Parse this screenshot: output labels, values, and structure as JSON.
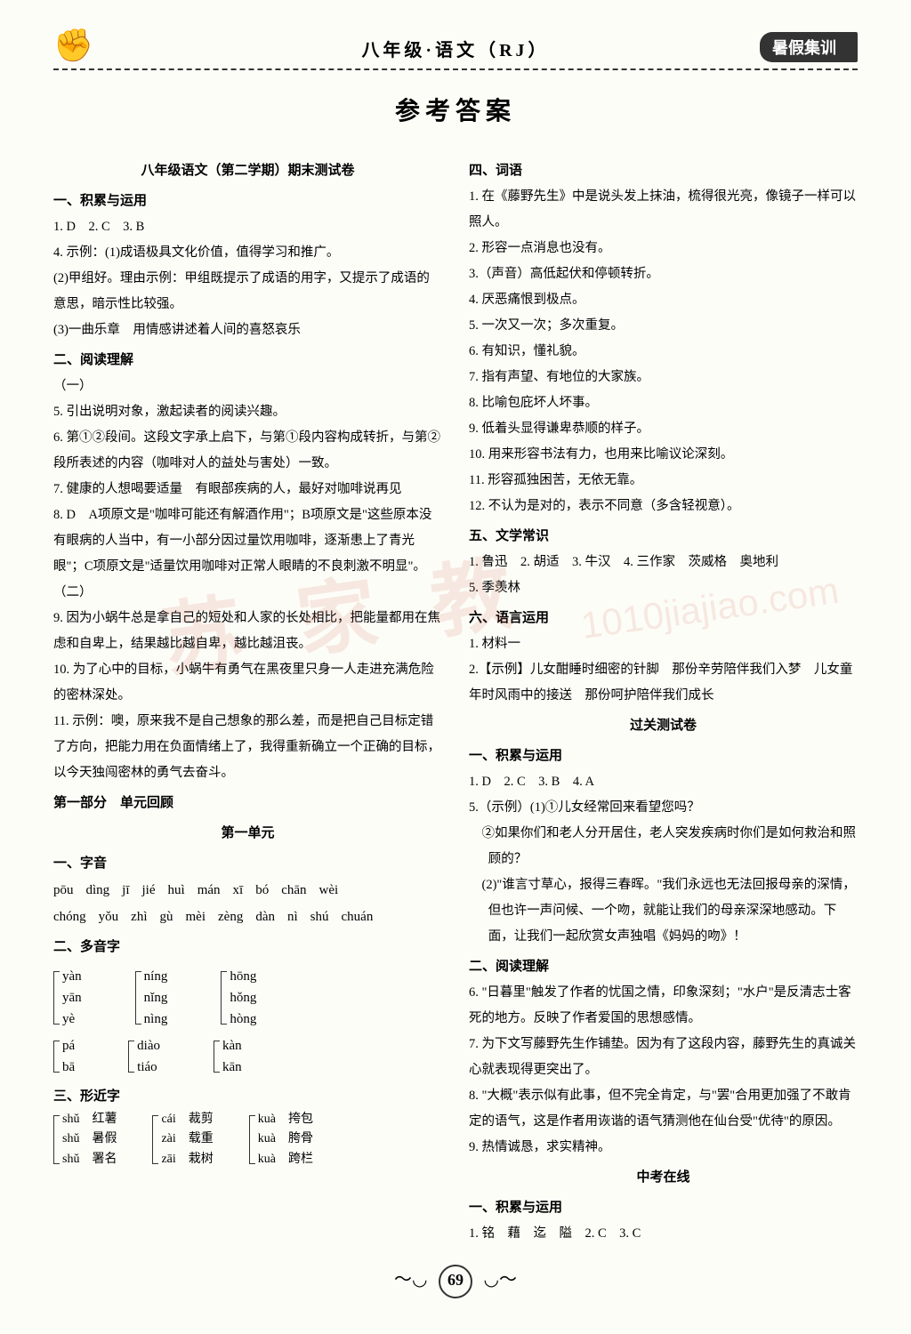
{
  "header": {
    "title": "八年级·语文（RJ）",
    "badge": "暑假集训"
  },
  "main_title": "参考答案",
  "watermark": "苏 家 教",
  "watermark2": "1010jiajiao.com",
  "page_number": "69",
  "left": {
    "test_title": "八年级语文（第二学期）期末测试卷",
    "s1_title": "一、积累与运用",
    "s1_items": [
      "1. D　2. C　3. B",
      "4. 示例：(1)成语极具文化价值，值得学习和推广。",
      "(2)甲组好。理由示例：甲组既提示了成语的用字，又提示了成语的意思，暗示性比较强。",
      "(3)一曲乐章　用情感讲述着人间的喜怒哀乐"
    ],
    "s2_title": "二、阅读理解",
    "s2a": "（一）",
    "s2a_items": [
      "5. 引出说明对象，激起读者的阅读兴趣。",
      "6. 第①②段间。这段文字承上启下，与第①段内容构成转折，与第②段所表述的内容（咖啡对人的益处与害处）一致。",
      "7. 健康的人想喝要适量　有眼部疾病的人，最好对咖啡说再见",
      "8. D　A项原文是\"咖啡可能还有解酒作用\"；B项原文是\"这些原本没有眼病的人当中，有一小部分因过量饮用咖啡，逐渐患上了青光眼\"；C项原文是\"适量饮用咖啡对正常人眼睛的不良刺激不明显\"。"
    ],
    "s2b": "（二）",
    "s2b_items": [
      "9. 因为小蜗牛总是拿自己的短处和人家的长处相比，把能量都用在焦虑和自卑上，结果越比越自卑，越比越沮丧。",
      "10. 为了心中的目标，小蜗牛有勇气在黑夜里只身一人走进充满危险的密林深处。",
      "11. 示例：噢，原来我不是自己想象的那么差，而是把自己目标定错了方向，把能力用在负面情绪上了，我得重新确立一个正确的目标，以今天独闯密林的勇气去奋斗。"
    ],
    "part1_title": "第一部分　单元回顾",
    "unit1_title": "第一单元",
    "u1_s1": "一、字音",
    "pinyin1": [
      "pōu",
      "dìng",
      "jī",
      "jié",
      "huì",
      "mán",
      "xī",
      "bó",
      "chān",
      "wèi"
    ],
    "pinyin2": [
      "chóng",
      "yǒu",
      "zhì",
      "gù",
      "mèi",
      "zèng",
      "dàn",
      "nì",
      "shú",
      "chuán"
    ],
    "u1_s2": "二、多音字",
    "poly": [
      {
        "group": [
          "yàn",
          "yān",
          "yè"
        ]
      },
      {
        "group": [
          "níng",
          "nǐng",
          "nìng"
        ]
      },
      {
        "group": [
          "hōng",
          "hǒng",
          "hòng"
        ]
      },
      {
        "group": [
          "pá",
          "bā"
        ]
      },
      {
        "group": [
          "diào",
          "tiáo"
        ]
      },
      {
        "group": [
          "kàn",
          "kān"
        ]
      }
    ],
    "u1_s3": "三、形近字",
    "near": [
      {
        "group": [
          "shǔ　红薯",
          "shǔ　暑假",
          "shǔ　署名"
        ]
      },
      {
        "group": [
          "cái　裁剪",
          "zài　载重",
          "zāi　栽树"
        ]
      },
      {
        "group": [
          "kuà　挎包",
          "kuà　胯骨",
          "kuà　跨栏"
        ]
      }
    ]
  },
  "right": {
    "s4_title": "四、词语",
    "s4_items": [
      "1. 在《藤野先生》中是说头发上抹油，梳得很光亮，像镜子一样可以照人。",
      "2. 形容一点消息也没有。",
      "3.（声音）高低起伏和停顿转折。",
      "4. 厌恶痛恨到极点。",
      "5. 一次又一次；多次重复。",
      "6. 有知识，懂礼貌。",
      "7. 指有声望、有地位的大家族。",
      "8. 比喻包庇坏人坏事。",
      "9. 低着头显得谦卑恭顺的样子。",
      "10. 用来形容书法有力，也用来比喻议论深刻。",
      "11. 形容孤独困苦，无依无靠。",
      "12. 不认为是对的，表示不同意（多含轻视意）。"
    ],
    "s5_title": "五、文学常识",
    "s5_items": [
      "1. 鲁迅　2. 胡适　3. 牛汉　4. 三作家　茨威格　奥地利",
      "5. 季羡林"
    ],
    "s6_title": "六、语言运用",
    "s6_items": [
      "1. 材料一",
      "2.【示例】儿女酣睡时细密的针脚　那份辛劳陪伴我们入梦　儿女童年时风雨中的接送　那份呵护陪伴我们成长"
    ],
    "pass_title": "过关测试卷",
    "p1_title": "一、积累与运用",
    "p1_items": [
      "1. D　2. C　3. B　4. A",
      "5.（示例）(1)①儿女经常回来看望您吗？",
      "②如果你们和老人分开居住，老人突发疾病时你们是如何救治和照顾的？",
      "(2)\"谁言寸草心，报得三春晖。\"我们永远也无法回报母亲的深情，但也许一声问候、一个吻，就能让我们的母亲深深地感动。下面，让我们一起欣赏女声独唱《妈妈的吻》！"
    ],
    "p2_title": "二、阅读理解",
    "p2_items": [
      "6. \"日暮里\"触发了作者的忧国之情，印象深刻；\"水户\"是反清志士客死的地方。反映了作者爱国的思想感情。",
      "7. 为下文写藤野先生作铺垫。因为有了这段内容，藤野先生的真诚关心就表现得更突出了。",
      "8. \"大概\"表示似有此事，但不完全肯定，与\"罢\"合用更加强了不敢肯定的语气，这是作者用诙谐的语气猜测他在仙台受\"优待\"的原因。",
      "9. 热情诚恳，求实精神。"
    ],
    "exam_title": "中考在线",
    "e1_title": "一、积累与运用",
    "e1_items": [
      "1. 铭　藉　迄　隘　2. C　3. C"
    ]
  }
}
